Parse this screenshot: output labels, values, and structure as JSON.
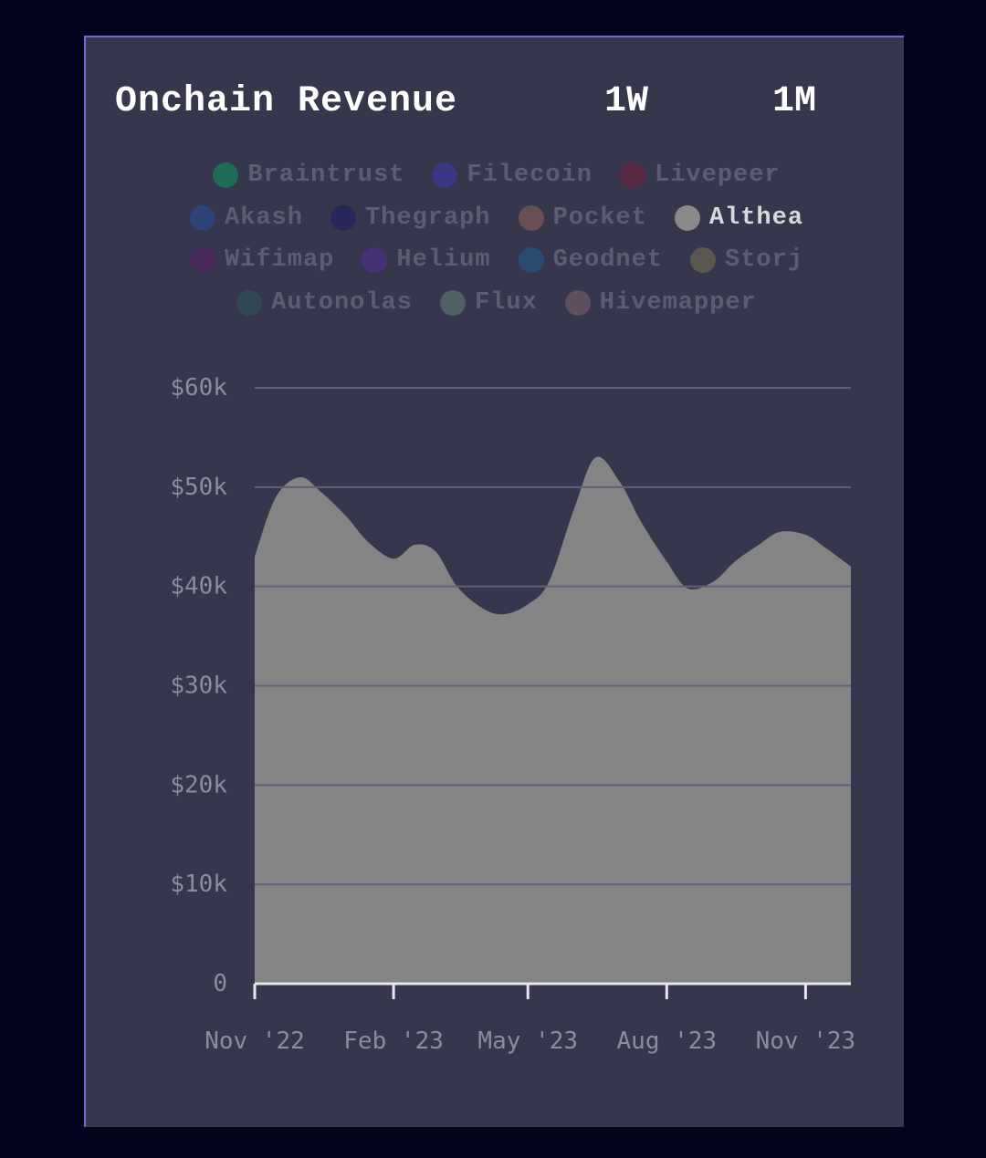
{
  "header": {
    "title": "Onchain Revenue",
    "range_buttons": [
      "1W",
      "1M"
    ]
  },
  "legend": {
    "rows": [
      [
        {
          "label": "Braintrust",
          "color": "#1f6b55",
          "active": false
        },
        {
          "label": "Filecoin",
          "color": "#3b3984",
          "active": false
        },
        {
          "label": "Livepeer",
          "color": "#5a2a45",
          "active": false
        }
      ],
      [
        {
          "label": "Akash",
          "color": "#2d4478",
          "active": false
        },
        {
          "label": "Thegraph",
          "color": "#27275a",
          "active": false
        },
        {
          "label": "Pocket",
          "color": "#684e55",
          "active": false
        },
        {
          "label": "Althea",
          "color": "#8a8a8a",
          "active": true
        }
      ],
      [
        {
          "label": "Wifimap",
          "color": "#4a2a5a",
          "active": false
        },
        {
          "label": "Helium",
          "color": "#47327a",
          "active": false
        },
        {
          "label": "Geodnet",
          "color": "#2a4a72",
          "active": false
        },
        {
          "label": "Storj",
          "color": "#5a5650",
          "active": false
        }
      ],
      [
        {
          "label": "Autonolas",
          "color": "#2f4a50",
          "active": false
        },
        {
          "label": "Flux",
          "color": "#4e6266",
          "active": false
        },
        {
          "label": "Hivemapper",
          "color": "#5e4e5e",
          "active": false
        }
      ]
    ]
  },
  "chart_data": {
    "type": "area",
    "series": [
      {
        "name": "Althea",
        "color": "#848484",
        "x": [
          "2022-11-01",
          "2022-11-15",
          "2022-12-01",
          "2022-12-15",
          "2023-01-01",
          "2023-01-15",
          "2023-02-01",
          "2023-02-15",
          "2023-03-01",
          "2023-03-15",
          "2023-04-01",
          "2023-04-15",
          "2023-05-01",
          "2023-05-15",
          "2023-06-01",
          "2023-06-15",
          "2023-07-01",
          "2023-07-15",
          "2023-08-01",
          "2023-08-15",
          "2023-09-01",
          "2023-09-15",
          "2023-10-01",
          "2023-10-15",
          "2023-11-01",
          "2023-11-15",
          "2023-12-01"
        ],
        "values": [
          43000,
          49000,
          51000,
          49500,
          47000,
          44500,
          42800,
          44200,
          43500,
          40000,
          37800,
          37200,
          38200,
          40500,
          48000,
          53000,
          50500,
          46500,
          42500,
          39800,
          40500,
          42500,
          44200,
          45500,
          45200,
          43800,
          42000
        ]
      }
    ],
    "x_ticks": [
      "Nov '22",
      "Feb '23",
      "May '23",
      "Aug '23",
      "Nov '23"
    ],
    "x_tick_dates": [
      "2022-11-01",
      "2023-02-01",
      "2023-05-01",
      "2023-08-01",
      "2023-11-01"
    ],
    "x_range": [
      "2022-11-01",
      "2023-12-01"
    ],
    "y_ticks": [
      "0",
      "$10k",
      "$20k",
      "$30k",
      "$40k",
      "$50k",
      "$60k"
    ],
    "y_tick_values": [
      0,
      10000,
      20000,
      30000,
      40000,
      50000,
      60000
    ],
    "ylim": [
      0,
      60000
    ],
    "grid": true,
    "colors": {
      "grid": "#5f5f78",
      "axis": "#e6e6ee"
    }
  }
}
